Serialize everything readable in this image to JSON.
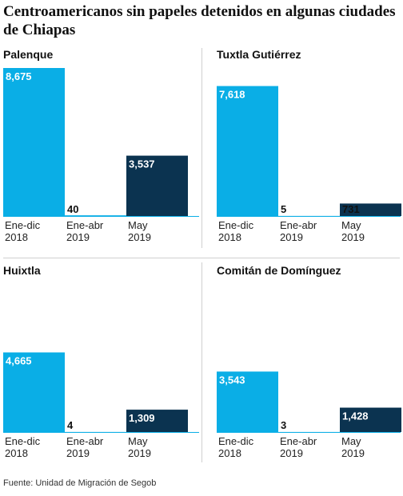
{
  "title": "Centroamericanos sin papeles detenidos en algunas ciudades de Chiapas",
  "source": "Fuente: Unidad de Migración de Segob",
  "colors": {
    "ene_dic_2018": "#0aaee6",
    "ene_abr_2019": "#0aaee6",
    "may_2019": "#0b3350"
  },
  "chart_data": [
    {
      "type": "bar",
      "title": "Palenque",
      "categories": [
        "Ene-dic 2018",
        "Ene-abr 2019",
        "May 2019"
      ],
      "values": [
        8675,
        40,
        3537
      ],
      "value_labels": [
        "8,675",
        "40",
        "3,537"
      ]
    },
    {
      "type": "bar",
      "title": "Tuxtla Gutiérrez",
      "categories": [
        "Ene-dic 2018",
        "Ene-abr 2019",
        "May 2019"
      ],
      "values": [
        7618,
        5,
        731
      ],
      "value_labels": [
        "7,618",
        "5",
        "731"
      ]
    },
    {
      "type": "bar",
      "title": "Huixtla",
      "categories": [
        "Ene-dic 2018",
        "Ene-abr 2019",
        "May 2019"
      ],
      "values": [
        4665,
        4,
        1309
      ],
      "value_labels": [
        "4,665",
        "4",
        "1,309"
      ]
    },
    {
      "type": "bar",
      "title": "Comitán de Domínguez",
      "categories": [
        "Ene-dic 2018",
        "Ene-abr 2019",
        "May 2019"
      ],
      "values": [
        3543,
        3,
        1428
      ],
      "value_labels": [
        "3,543",
        "3",
        "1,428"
      ]
    }
  ]
}
